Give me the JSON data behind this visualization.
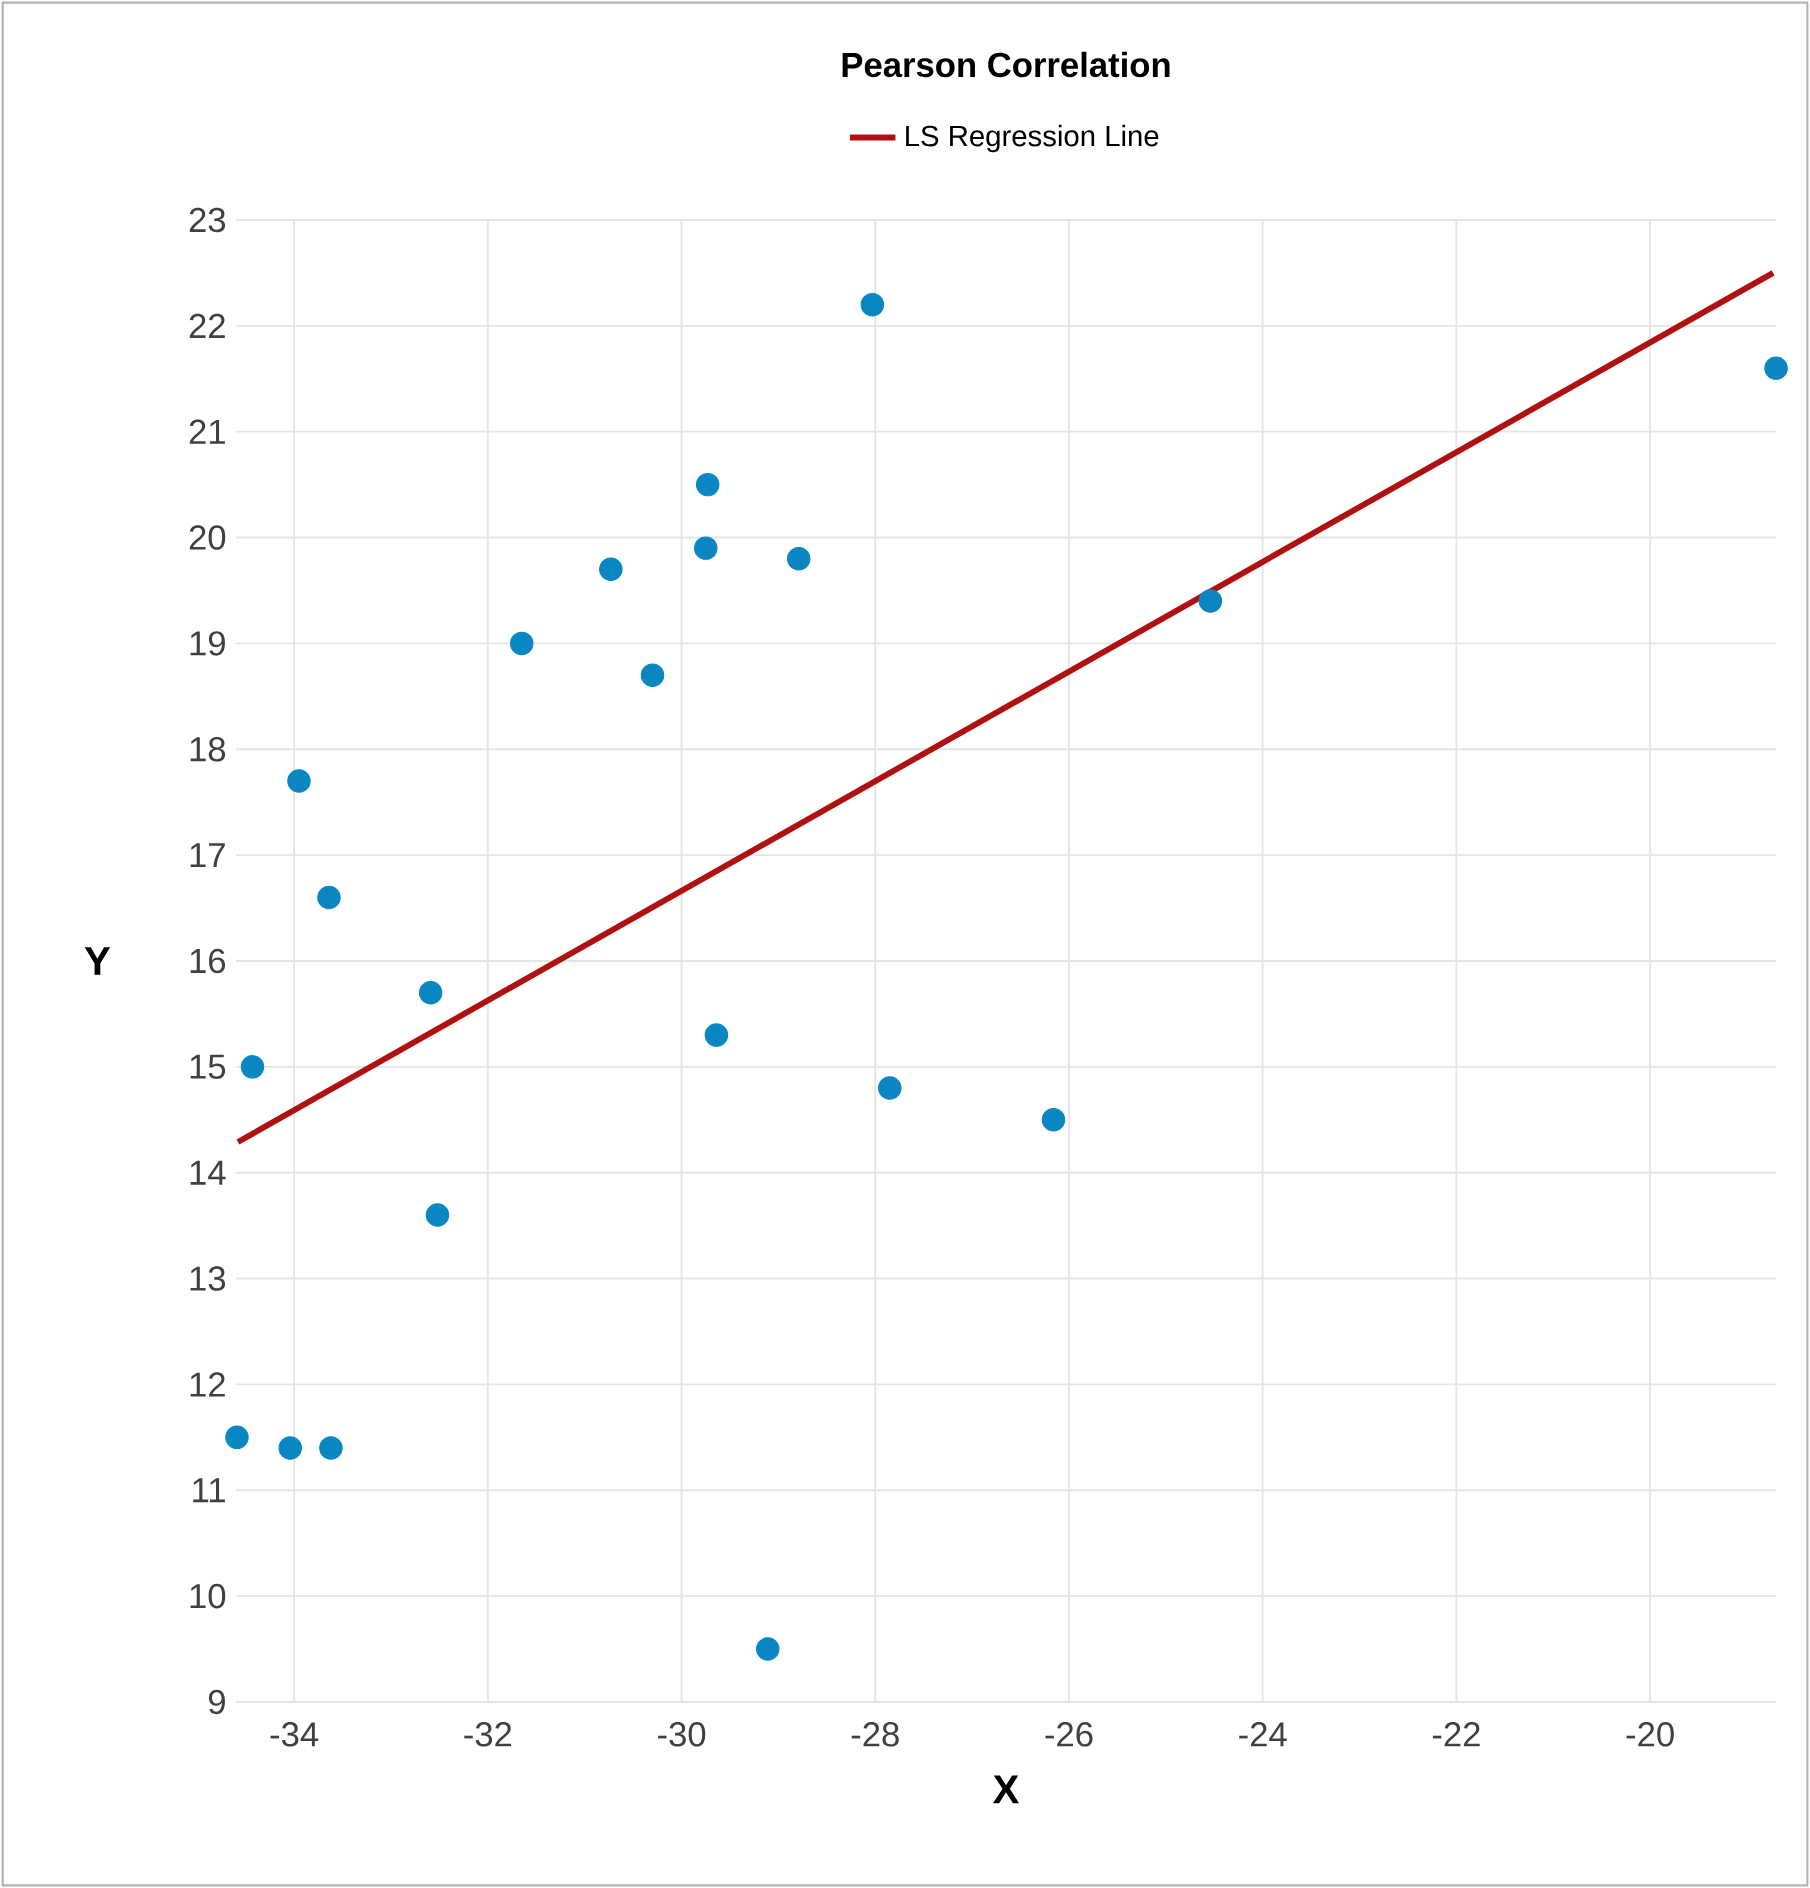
{
  "chart_data": {
    "type": "scatter",
    "title": "Pearson Correlation",
    "xlabel": "X",
    "ylabel": "Y",
    "xlim": [
      -34.6,
      -18.7
    ],
    "xticks": [
      -34,
      -32,
      -30,
      -28,
      -26,
      -24,
      -22,
      -20
    ],
    "ylim": [
      9,
      23
    ],
    "yticks": [
      9,
      10,
      11,
      12,
      13,
      14,
      15,
      16,
      17,
      18,
      19,
      20,
      21,
      22,
      23
    ],
    "grid": true,
    "legend": "top",
    "marker": "circle",
    "series": [
      {
        "color": "#0a87c2",
        "x": [
          -34.43,
          -34.59,
          -34.04,
          -33.62,
          -32.59,
          -32.52,
          -29.64,
          -27.85,
          -29.11,
          -33.95,
          -33.64,
          -31.65,
          -30.73,
          -30.3,
          -29.73,
          -29.75,
          -28.79,
          -28.03,
          -26.16,
          -24.54,
          -18.7
        ],
        "values": [
          15.0,
          11.5,
          11.4,
          11.4,
          15.7,
          13.6,
          15.3,
          14.8,
          9.5,
          17.7,
          16.6,
          19.0,
          19.7,
          18.7,
          20.5,
          19.9,
          19.8,
          22.2,
          14.5,
          19.4,
          21.6
        ]
      },
      {
        "type": "line",
        "name": "LS Regression Line",
        "color": "#b01010",
        "marker": "none",
        "line_style": "solid",
        "x": [
          -34.58,
          -18.73
        ],
        "values": [
          14.29,
          22.5
        ]
      }
    ]
  }
}
